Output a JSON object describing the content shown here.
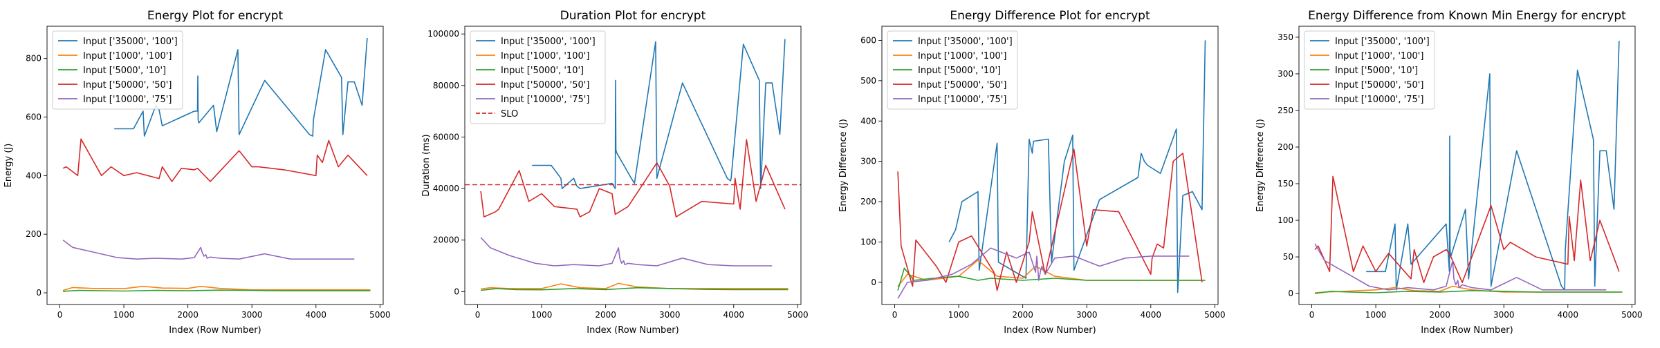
{
  "chart_data": [
    {
      "type": "line",
      "title": "Energy Plot for encrypt",
      "xlabel": "Index (Row Number)",
      "ylabel": "Energy (J)",
      "xlim": [
        -200,
        5050
      ],
      "ylim": [
        -40,
        910
      ],
      "xticks": [
        0,
        1000,
        2000,
        3000,
        4000,
        5000
      ],
      "yticks": [
        0,
        200,
        400,
        600,
        800
      ],
      "legend": "upper-left",
      "series": [
        {
          "name": "Input ['35000', '100']",
          "color": "#1f77b4",
          "x": [
            850,
            1000,
            1150,
            1300,
            1320,
            1500,
            1550,
            1600,
            2100,
            2150,
            2155,
            2160,
            2170,
            2400,
            2450,
            2780,
            2800,
            3200,
            3900,
            3950,
            3960,
            4150,
            4400,
            4420,
            4500,
            4600,
            4720,
            4800
          ],
          "y": [
            560,
            560,
            560,
            620,
            535,
            640,
            625,
            570,
            620,
            620,
            740,
            590,
            580,
            640,
            550,
            830,
            540,
            725,
            540,
            535,
            590,
            830,
            735,
            540,
            720,
            720,
            640,
            870
          ]
        },
        {
          "name": "Input ['1000', '100']",
          "color": "#ff7f0e",
          "x": [
            50,
            200,
            500,
            1000,
            1300,
            1600,
            2000,
            2200,
            2500,
            3000,
            3500,
            4000,
            4500,
            4850
          ],
          "y": [
            8,
            18,
            15,
            14,
            22,
            16,
            15,
            22,
            15,
            10,
            10,
            10,
            10,
            10
          ]
        },
        {
          "name": "Input ['5000', '10']",
          "color": "#2ca02c",
          "x": [
            50,
            300,
            600,
            1000,
            1500,
            2000,
            2500,
            3000,
            3500,
            4000,
            4500,
            4850
          ],
          "y": [
            5,
            8,
            7,
            6,
            8,
            7,
            9,
            8,
            7,
            7,
            7,
            7
          ]
        },
        {
          "name": "Input ['50000', '50']",
          "color": "#d62728",
          "x": [
            50,
            100,
            280,
            330,
            650,
            800,
            1000,
            1200,
            1550,
            1600,
            1750,
            1900,
            2100,
            2150,
            2350,
            2800,
            3000,
            3100,
            3500,
            4000,
            4020,
            4100,
            4200,
            4350,
            4500,
            4800
          ],
          "y": [
            425,
            430,
            400,
            525,
            400,
            430,
            400,
            410,
            390,
            430,
            380,
            425,
            420,
            425,
            380,
            485,
            430,
            430,
            420,
            400,
            470,
            445,
            520,
            430,
            470,
            400
          ]
        },
        {
          "name": "Input ['10000', '75']",
          "color": "#9467bd",
          "x": [
            50,
            200,
            500,
            900,
            1200,
            1500,
            1900,
            2100,
            2200,
            2220,
            2250,
            2280,
            2300,
            2350,
            2500,
            2800,
            3200,
            3600,
            4000,
            4600
          ],
          "y": [
            180,
            155,
            140,
            120,
            115,
            118,
            115,
            120,
            155,
            140,
            125,
            130,
            118,
            122,
            118,
            115,
            133,
            115,
            115,
            115
          ]
        }
      ]
    },
    {
      "type": "line",
      "title": "Duration Plot for encrypt",
      "xlabel": "Index (Row Number)",
      "ylabel": "Duration (ms)",
      "xlim": [
        -200,
        5050
      ],
      "ylim": [
        -5000,
        103000
      ],
      "xticks": [
        0,
        1000,
        2000,
        3000,
        4000,
        5000
      ],
      "yticks": [
        0,
        20000,
        40000,
        60000,
        80000,
        100000
      ],
      "legend": "upper-left",
      "series": [
        {
          "name": "Input ['35000', '100']",
          "color": "#1f77b4",
          "x": [
            850,
            1000,
            1150,
            1300,
            1320,
            1500,
            1550,
            1600,
            2100,
            2150,
            2155,
            2160,
            2170,
            2400,
            2450,
            2780,
            2800,
            3200,
            3900,
            3950,
            3960,
            4150,
            4400,
            4420,
            4500,
            4600,
            4720,
            4800
          ],
          "y": [
            49000,
            49000,
            49000,
            44000,
            40000,
            44000,
            41000,
            40000,
            42000,
            40000,
            82000,
            55000,
            54000,
            44000,
            42000,
            97000,
            44000,
            81000,
            44000,
            43000,
            44000,
            96000,
            82000,
            40000,
            81000,
            81000,
            61000,
            98000
          ]
        },
        {
          "name": "Input ['1000', '100']",
          "color": "#ff7f0e",
          "x": [
            50,
            200,
            500,
            1000,
            1300,
            1600,
            2000,
            2200,
            2500,
            3000,
            3500,
            4000,
            4500,
            4850
          ],
          "y": [
            1000,
            1500,
            1200,
            1200,
            3000,
            1500,
            1200,
            3200,
            1800,
            1200,
            1200,
            1200,
            1200,
            1200
          ]
        },
        {
          "name": "Input ['5000', '10']",
          "color": "#2ca02c",
          "x": [
            50,
            300,
            600,
            1000,
            1500,
            2000,
            2500,
            3000,
            3500,
            4000,
            4500,
            4850
          ],
          "y": [
            500,
            1200,
            800,
            700,
            1200,
            800,
            1500,
            1200,
            900,
            800,
            800,
            800
          ]
        },
        {
          "name": "Input ['50000', '50']",
          "color": "#d62728",
          "x": [
            50,
            100,
            280,
            330,
            650,
            800,
            1000,
            1200,
            1550,
            1600,
            1750,
            1900,
            2100,
            2150,
            2350,
            2800,
            3000,
            3100,
            3500,
            4000,
            4020,
            4100,
            4200,
            4350,
            4500,
            4800
          ],
          "y": [
            39000,
            29000,
            31000,
            32000,
            47000,
            35000,
            38000,
            33000,
            32000,
            29000,
            31000,
            40000,
            38000,
            30000,
            33000,
            50000,
            41000,
            29000,
            35000,
            34000,
            44000,
            32000,
            59000,
            35000,
            49000,
            32000
          ]
        },
        {
          "name": "Input ['10000', '75']",
          "color": "#9467bd",
          "x": [
            50,
            200,
            500,
            900,
            1200,
            1500,
            1900,
            2100,
            2200,
            2220,
            2250,
            2280,
            2300,
            2350,
            2500,
            2800,
            3200,
            3600,
            4000,
            4600
          ],
          "y": [
            21000,
            17000,
            14000,
            11000,
            10000,
            10500,
            10000,
            11000,
            17000,
            13000,
            11000,
            12000,
            10500,
            11000,
            10500,
            10000,
            13000,
            10500,
            10000,
            10000
          ]
        },
        {
          "name": "SLO",
          "color": "#d62728",
          "dashed": true,
          "x": [
            -200,
            5050
          ],
          "y": [
            41500,
            41500
          ]
        }
      ]
    },
    {
      "type": "line",
      "title": "Energy Difference Plot for encrypt",
      "xlabel": "Index (Row Number)",
      "ylabel": "Energy Difference (J)",
      "xlim": [
        -200,
        5050
      ],
      "ylim": [
        -55,
        635
      ],
      "xticks": [
        0,
        1000,
        2000,
        3000,
        4000,
        5000
      ],
      "yticks": [
        0,
        100,
        200,
        300,
        400,
        500,
        600
      ],
      "legend": "upper-left",
      "series": [
        {
          "name": "Input ['35000', '100']",
          "color": "#1f77b4",
          "x": [
            850,
            950,
            1050,
            1300,
            1320,
            1600,
            1620,
            2050,
            2100,
            2150,
            2155,
            2160,
            2170,
            2400,
            2450,
            2650,
            2780,
            2800,
            3200,
            3800,
            3850,
            3900,
            3950,
            4150,
            4400,
            4420,
            4500,
            4650,
            4800,
            4850
          ],
          "y": [
            100,
            130,
            200,
            225,
            30,
            345,
            50,
            10,
            355,
            320,
            330,
            340,
            350,
            355,
            50,
            300,
            365,
            30,
            205,
            260,
            320,
            300,
            290,
            270,
            380,
            -25,
            215,
            225,
            180,
            600
          ]
        },
        {
          "name": "Input ['1000', '100']",
          "color": "#ff7f0e",
          "x": [
            50,
            200,
            500,
            1000,
            1300,
            1600,
            2000,
            2200,
            2500,
            3000,
            3500,
            4000,
            4500,
            4850
          ],
          "y": [
            -10,
            20,
            5,
            15,
            55,
            15,
            10,
            40,
            15,
            5,
            5,
            5,
            5,
            5
          ]
        },
        {
          "name": "Input ['5000', '10']",
          "color": "#2ca02c",
          "x": [
            50,
            150,
            300,
            600,
            1000,
            1300,
            1500,
            2000,
            2500,
            3000,
            3500,
            4000,
            4500,
            4850
          ],
          "y": [
            -20,
            35,
            5,
            10,
            15,
            5,
            10,
            5,
            10,
            5,
            5,
            5,
            5,
            5
          ]
        },
        {
          "name": "Input ['50000', '50']",
          "color": "#d62728",
          "x": [
            50,
            100,
            280,
            330,
            650,
            800,
            1000,
            1200,
            1550,
            1600,
            1750,
            1900,
            2100,
            2150,
            2350,
            2800,
            3000,
            3100,
            3500,
            4000,
            4020,
            4100,
            4200,
            4350,
            4500,
            4800
          ],
          "y": [
            275,
            90,
            -10,
            105,
            40,
            0,
            100,
            115,
            25,
            -20,
            75,
            0,
            100,
            175,
            20,
            330,
            90,
            180,
            175,
            20,
            60,
            95,
            85,
            300,
            320,
            0
          ]
        },
        {
          "name": "Input ['10000', '75']",
          "color": "#9467bd",
          "x": [
            50,
            200,
            500,
            900,
            1200,
            1500,
            1900,
            2100,
            2200,
            2220,
            2250,
            2280,
            2300,
            2350,
            2500,
            2800,
            3200,
            3600,
            4000,
            4600
          ],
          "y": [
            -40,
            0,
            5,
            20,
            45,
            85,
            60,
            75,
            25,
            65,
            5,
            30,
            40,
            20,
            60,
            65,
            40,
            60,
            65,
            65
          ]
        }
      ]
    },
    {
      "type": "line",
      "title": "Energy Difference from Known Min Energy for encrypt",
      "xlabel": "Index (Row Number)",
      "ylabel": "Energy Difference (J)",
      "xlim": [
        -200,
        5050
      ],
      "ylim": [
        -15,
        365
      ],
      "xticks": [
        0,
        1000,
        2000,
        3000,
        4000,
        5000
      ],
      "yticks": [
        0,
        50,
        100,
        150,
        200,
        250,
        300,
        350
      ],
      "legend": "upper-left",
      "series": [
        {
          "name": "Input ['35000', '100']",
          "color": "#1f77b4",
          "x": [
            850,
            1000,
            1150,
            1300,
            1320,
            1500,
            1550,
            1600,
            2100,
            2150,
            2155,
            2160,
            2170,
            2400,
            2450,
            2780,
            2800,
            3200,
            3900,
            3950,
            3960,
            4150,
            4400,
            4420,
            4500,
            4600,
            4720,
            4800
          ],
          "y": [
            30,
            30,
            30,
            95,
            5,
            95,
            40,
            45,
            95,
            30,
            215,
            60,
            50,
            115,
            20,
            300,
            10,
            195,
            10,
            5,
            60,
            305,
            210,
            10,
            195,
            195,
            115,
            345
          ]
        },
        {
          "name": "Input ['1000', '100']",
          "color": "#ff7f0e",
          "x": [
            50,
            200,
            500,
            1000,
            1300,
            1600,
            2000,
            2200,
            2500,
            3000,
            3500,
            4000,
            4500,
            4850
          ],
          "y": [
            1,
            2,
            3,
            5,
            8,
            4,
            3,
            10,
            5,
            2,
            2,
            2,
            2,
            2
          ]
        },
        {
          "name": "Input ['5000', '10']",
          "color": "#2ca02c",
          "x": [
            50,
            300,
            600,
            1000,
            1500,
            2000,
            2500,
            3000,
            3500,
            4000,
            4500,
            4850
          ],
          "y": [
            0,
            3,
            2,
            1,
            3,
            2,
            4,
            3,
            2,
            2,
            2,
            2
          ]
        },
        {
          "name": "Input ['50000', '50']",
          "color": "#d62728",
          "x": [
            50,
            100,
            280,
            330,
            650,
            800,
            1000,
            1200,
            1550,
            1600,
            1750,
            1900,
            2100,
            2150,
            2350,
            2800,
            3000,
            3100,
            3500,
            4000,
            4020,
            4100,
            4200,
            4350,
            4500,
            4800
          ],
          "y": [
            60,
            65,
            30,
            160,
            30,
            65,
            30,
            55,
            20,
            60,
            15,
            50,
            60,
            55,
            15,
            120,
            60,
            70,
            50,
            40,
            105,
            45,
            155,
            45,
            100,
            30
          ]
        },
        {
          "name": "Input ['10000', '75']",
          "color": "#9467bd",
          "x": [
            50,
            200,
            500,
            900,
            1200,
            1500,
            1900,
            2100,
            2200,
            2220,
            2250,
            2280,
            2300,
            2350,
            2500,
            2800,
            3200,
            3600,
            4000,
            4600
          ],
          "y": [
            68,
            45,
            30,
            10,
            5,
            8,
            5,
            10,
            45,
            20,
            12,
            18,
            8,
            12,
            8,
            5,
            22,
            5,
            5,
            5
          ]
        }
      ]
    }
  ]
}
